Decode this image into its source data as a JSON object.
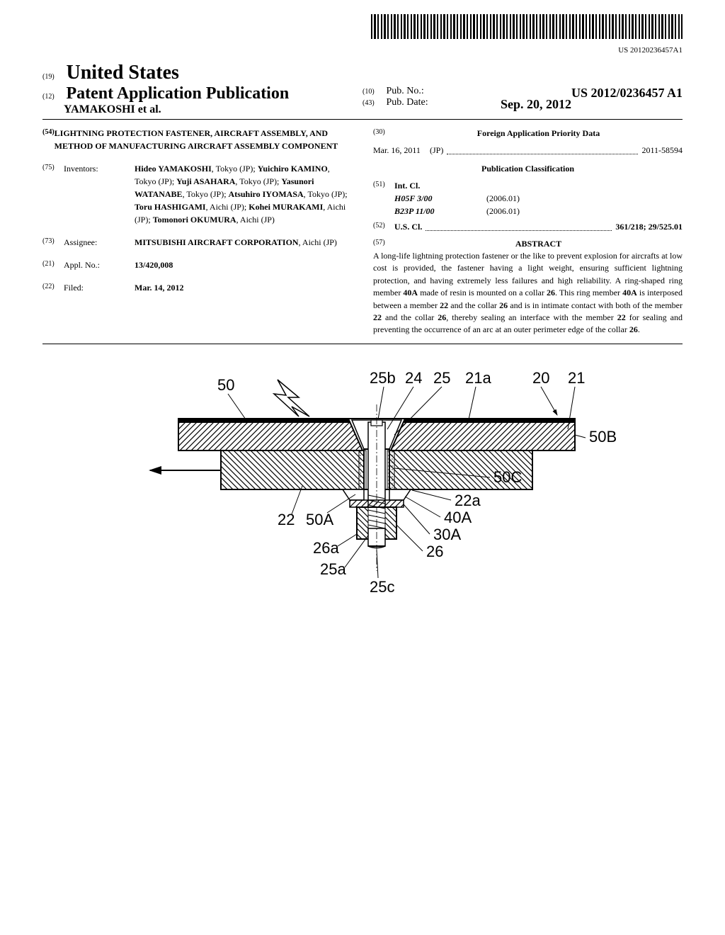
{
  "barcode_number": "US 20120236457A1",
  "header": {
    "code19": "(19)",
    "country": "United States",
    "code12": "(12)",
    "pub_type": "Patent Application Publication",
    "authors": "YAMAKOSHI et al.",
    "code10": "(10)",
    "pub_no_label": "Pub. No.:",
    "pub_no": "US 2012/0236457 A1",
    "code43": "(43)",
    "pub_date_label": "Pub. Date:",
    "pub_date": "Sep. 20, 2012"
  },
  "title": {
    "code": "(54)",
    "text": "LIGHTNING PROTECTION FASTENER, AIRCRAFT ASSEMBLY, AND METHOD OF MANUFACTURING AIRCRAFT ASSEMBLY COMPONENT"
  },
  "inventors": {
    "code": "(75)",
    "label": "Inventors:",
    "list": "Hideo YAMAKOSHI, Tokyo (JP); Yuichiro KAMINO, Tokyo (JP); Yuji ASAHARA, Tokyo (JP); Yasunori WATANABE, Tokyo (JP); Atsuhiro IYOMASA, Tokyo (JP); Toru HASHIGAMI, Aichi (JP); Kohei MURAKAMI, Aichi (JP); Tomonori OKUMURA, Aichi (JP)"
  },
  "assignee": {
    "code": "(73)",
    "label": "Assignee:",
    "name": "MITSUBISHI AIRCRAFT CORPORATION",
    "loc": ", Aichi (JP)"
  },
  "appl": {
    "code": "(21)",
    "label": "Appl. No.:",
    "value": "13/420,008"
  },
  "filed": {
    "code": "(22)",
    "label": "Filed:",
    "value": "Mar. 14, 2012"
  },
  "foreign": {
    "code": "(30)",
    "header": "Foreign Application Priority Data",
    "date": "Mar. 16, 2011",
    "country": "(JP)",
    "number": "2011-58594"
  },
  "classification": {
    "header": "Publication Classification",
    "intcl": {
      "code": "(51)",
      "label": "Int. Cl.",
      "items": [
        {
          "code": "H05F 3/00",
          "date": "(2006.01)"
        },
        {
          "code": "B23P 11/00",
          "date": "(2006.01)"
        }
      ]
    },
    "uscl": {
      "code": "(52)",
      "label": "U.S. Cl.",
      "value": "361/218; 29/525.01"
    }
  },
  "abstract": {
    "code": "(57)",
    "header": "ABSTRACT",
    "text": "A long-life lightning protection fastener or the like to prevent explosion for aircrafts at low cost is provided, the fastener having a light weight, ensuring sufficient lightning protection, and having extremely less failures and high reliability. A ring-shaped ring member 40A made of resin is mounted on a collar 26. This ring member 40A is interposed between a member 22 and the collar 26 and is in intimate contact with both of the member 22 and the collar 26, thereby sealing an interface with the member 22 for sealing and preventing the occurrence of an arc at an outer perimeter edge of the collar 26."
  },
  "figure": {
    "labels": [
      "50",
      "25b",
      "24",
      "25",
      "21a",
      "20",
      "21",
      "50B",
      "50C",
      "22a",
      "40A",
      "30A",
      "26",
      "22",
      "50A",
      "26a",
      "25a",
      "25c"
    ],
    "colors": {
      "stroke": "#000000",
      "fill_hatch": "#000000",
      "background": "#ffffff"
    }
  }
}
